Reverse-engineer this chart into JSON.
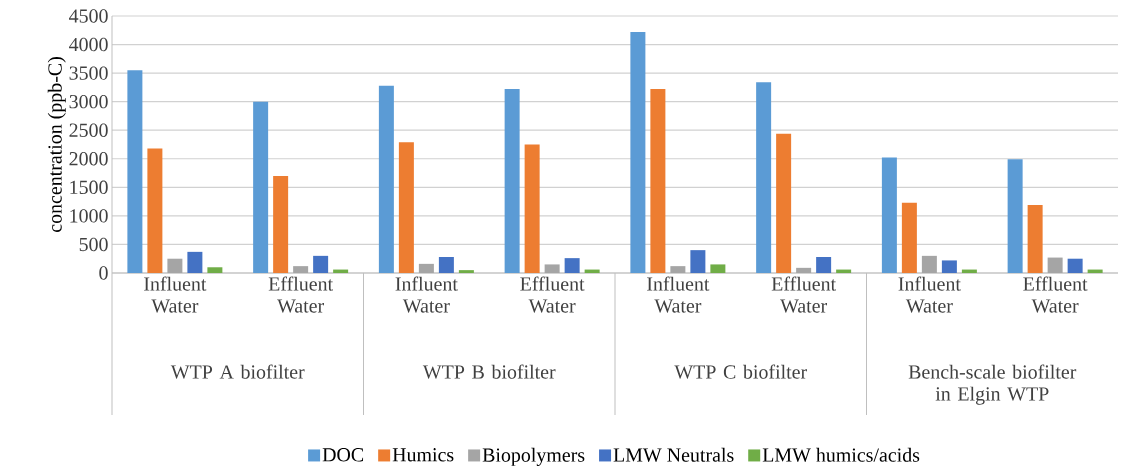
{
  "chart_data": {
    "type": "bar",
    "ylabel": "concentration (ppb-C)",
    "categories": [
      "Influent Water",
      "Effluent Water",
      "Influent Water",
      "Effluent Water",
      "Influent Water",
      "Effluent Water",
      "Influent Water",
      "Effluent Water"
    ],
    "series": [
      {
        "name": "DOC",
        "color": "#5b9bd5",
        "values": [
          3550,
          3000,
          3280,
          3220,
          4220,
          3340,
          2020,
          1990
        ]
      },
      {
        "name": "Humics",
        "color": "#ed7d31",
        "values": [
          2180,
          1700,
          2290,
          2250,
          3220,
          2440,
          1230,
          1190
        ]
      },
      {
        "name": "Biopolymers",
        "color": "#a5a5a5",
        "values": [
          250,
          120,
          160,
          150,
          120,
          90,
          300,
          270
        ]
      },
      {
        "name": "LMW Neutrals",
        "color": "#4472c4",
        "values": [
          370,
          300,
          280,
          260,
          400,
          280,
          220,
          250
        ]
      },
      {
        "name": "LMW humics/acids",
        "color": "#70ad47",
        "values": [
          100,
          60,
          50,
          60,
          150,
          60,
          60,
          60
        ]
      }
    ],
    "annotations": [
      "WTP A biofilter",
      "WTP B biofilter",
      "WTP C biofilter",
      "Bench-scale biofilter in Elgin WTP"
    ],
    "ylim": [
      0,
      4500
    ],
    "yticks": [
      0,
      500,
      1000,
      1500,
      2000,
      2500,
      3000,
      3500,
      4000,
      4500
    ],
    "grid": "y",
    "legend": "bottom"
  }
}
